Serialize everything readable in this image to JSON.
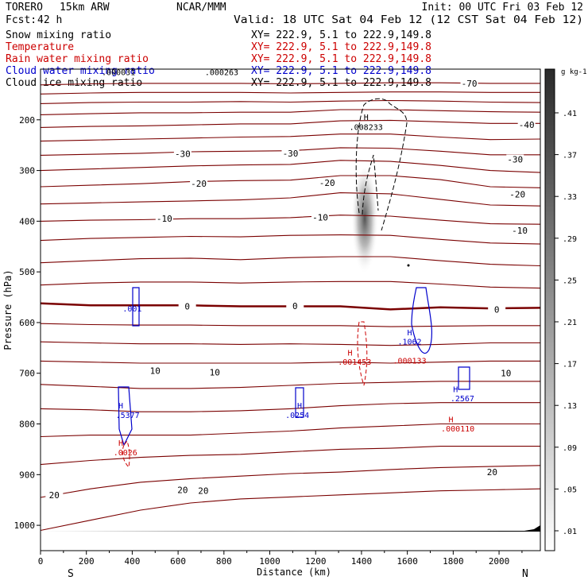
{
  "header": {
    "model": "TORERO",
    "config": "15km ARW",
    "org": "NCAR/MMM",
    "init": "Init: 00 UTC Fri 03 Feb 12",
    "fcst_label": "Fcst:",
    "fcst_value": "42 h",
    "valid": "Valid: 18 UTC Sat 04 Feb 12 (12 CST Sat 04 Feb 12)"
  },
  "fields": [
    {
      "name": "Snow mixing ratio",
      "color": "#000000",
      "xy": "XY= 222.9,  5.1 to 222.9,149.8"
    },
    {
      "name": "Temperature",
      "color": "#cc0000",
      "xy": "XY= 222.9,  5.1 to 222.9,149.8"
    },
    {
      "name": "Rain water mixing ratio",
      "color": "#cc0000",
      "xy": "XY= 222.9,  5.1 to 222.9,149.8"
    },
    {
      "name": "Cloud water mixing ratio",
      "color": "#0000cc",
      "xy": "XY= 222.9,  5.1 to 222.9,149.8"
    },
    {
      "name": "Cloud ice mixing ratio",
      "color": "#000000",
      "xy": "XY= 222.9,  5.1 to 222.9,149.8"
    }
  ],
  "chart_data": {
    "type": "cross-section",
    "xlabel": "Distance (km)",
    "ylabel": "Pressure (hPa)",
    "xlim": [
      0,
      2180
    ],
    "ylim": [
      1050,
      100
    ],
    "x_ticks": [
      0,
      200,
      400,
      600,
      800,
      1000,
      1200,
      1400,
      1600,
      1800,
      2000
    ],
    "y_ticks": [
      200,
      300,
      400,
      500,
      600,
      700,
      800,
      900,
      1000
    ],
    "left_end_label": "S",
    "right_end_label": "N",
    "colorbar": {
      "unit": "g kg-1",
      "ticks": [
        ".01",
        ".05",
        ".09",
        ".13",
        ".17",
        ".21",
        ".25",
        ".29",
        ".33",
        ".37",
        ".41"
      ]
    },
    "temperature_contours": [
      {
        "label": "-70",
        "p": [
          131,
          129,
          128,
          128,
          128,
          129,
          128,
          127,
          127,
          128,
          128
        ]
      },
      {
        "p": [
          149,
          147,
          146,
          146,
          146,
          147,
          146,
          145,
          145,
          146,
          146
        ]
      },
      {
        "p": [
          168,
          166,
          165,
          165,
          164,
          165,
          163,
          162,
          163,
          165,
          166
        ]
      },
      {
        "p": [
          190,
          188,
          186,
          186,
          185,
          185,
          180,
          180,
          182,
          184,
          185
        ]
      },
      {
        "label": "-40",
        "p": [
          215,
          213,
          212,
          210,
          208,
          208,
          202,
          201,
          204,
          207,
          207
        ]
      },
      {
        "p": [
          242,
          240,
          238,
          236,
          234,
          233,
          228,
          228,
          234,
          239,
          238
        ]
      },
      {
        "label": "-30",
        "p": [
          270,
          268,
          266,
          263,
          262,
          261,
          255,
          256,
          262,
          269,
          269
        ]
      },
      {
        "p": [
          300,
          297,
          294,
          291,
          289,
          288,
          280,
          282,
          290,
          300,
          304
        ]
      },
      {
        "label": "-20",
        "p": [
          332,
          329,
          326,
          322,
          320,
          319,
          310,
          310,
          318,
          332,
          334
        ]
      },
      {
        "p": [
          366,
          364,
          362,
          360,
          358,
          354,
          344,
          346,
          357,
          368,
          370
        ]
      },
      {
        "label": "-10",
        "p": [
          400,
          398,
          397,
          395,
          395,
          393,
          388,
          390,
          398,
          405,
          406
        ]
      },
      {
        "p": [
          438,
          434,
          432,
          430,
          431,
          428,
          427,
          428,
          436,
          443,
          445
        ]
      },
      {
        "p": [
          482,
          478,
          474,
          473,
          476,
          472,
          470,
          470,
          478,
          485,
          488
        ]
      },
      {
        "p": [
          526,
          522,
          520,
          520,
          522,
          520,
          519,
          519,
          524,
          530,
          532
        ]
      },
      {
        "label": "0",
        "bold": true,
        "p": [
          562,
          566,
          566,
          566,
          568,
          568,
          568,
          574,
          570,
          572,
          571
        ]
      },
      {
        "p": [
          602,
          604,
          605,
          605,
          606,
          606,
          606,
          608,
          607,
          606,
          606
        ]
      },
      {
        "p": [
          638,
          640,
          642,
          642,
          643,
          642,
          643,
          645,
          643,
          640,
          640
        ]
      },
      {
        "label": "10",
        "p": [
          676,
          678,
          680,
          680,
          680,
          680,
          678,
          680,
          678,
          676,
          676
        ]
      },
      {
        "p": [
          722,
          726,
          730,
          730,
          728,
          724,
          720,
          718,
          716,
          716,
          716
        ]
      },
      {
        "p": [
          770,
          772,
          776,
          776,
          774,
          770,
          764,
          760,
          758,
          758,
          758
        ]
      },
      {
        "p": [
          825,
          822,
          822,
          822,
          818,
          814,
          808,
          804,
          800,
          800,
          800
        ]
      },
      {
        "p": [
          880,
          872,
          866,
          862,
          860,
          855,
          850,
          848,
          844,
          844,
          844
        ]
      },
      {
        "label": "20",
        "p": [
          945,
          928,
          915,
          908,
          903,
          898,
          895,
          890,
          886,
          884,
          882
        ]
      },
      {
        "p": [
          1010,
          990,
          970,
          956,
          948,
          944,
          940,
          936,
          932,
          930,
          928
        ]
      }
    ],
    "temp_labels": [
      {
        "text": "-70",
        "x": 1870,
        "p": 128
      },
      {
        "text": "-40",
        "x": 2120,
        "p": 210
      },
      {
        "text": "-30",
        "x": 620,
        "p": 267
      },
      {
        "text": "-30",
        "x": 1090,
        "p": 266
      },
      {
        "text": "-30",
        "x": 2070,
        "p": 278
      },
      {
        "text": "-20",
        "x": 690,
        "p": 326
      },
      {
        "text": "-20",
        "x": 1250,
        "p": 324
      },
      {
        "text": "-20",
        "x": 2080,
        "p": 347
      },
      {
        "text": "-10",
        "x": 540,
        "p": 395
      },
      {
        "text": "-10",
        "x": 1220,
        "p": 392
      },
      {
        "text": "-10",
        "x": 2090,
        "p": 418
      },
      {
        "text": "0",
        "x": 640,
        "p": 568
      },
      {
        "text": "0",
        "x": 1110,
        "p": 567
      },
      {
        "text": "0",
        "x": 1990,
        "p": 574
      },
      {
        "text": "10",
        "x": 500,
        "p": 695
      },
      {
        "text": "10",
        "x": 760,
        "p": 698
      },
      {
        "text": "10",
        "x": 2030,
        "p": 700
      },
      {
        "text": "20",
        "x": 60,
        "p": 940
      },
      {
        "text": "20",
        "x": 620,
        "p": 930
      },
      {
        "text": "20",
        "x": 710,
        "p": 932
      },
      {
        "text": "20",
        "x": 1970,
        "p": 895
      }
    ],
    "annotations": [
      {
        "text": "H",
        "x": 1420,
        "p": 200,
        "color": "#000000"
      },
      {
        "text": ".008233",
        "x": 1420,
        "p": 220,
        "color": "#000000"
      },
      {
        "text": ".000031",
        "x": 340,
        "p": 112,
        "color": "#000000"
      },
      {
        "text": ".000263",
        "x": 790,
        "p": 112,
        "color": "#000000"
      },
      {
        "text": ".001",
        "x": 400,
        "p": 578,
        "color": "#0000cc"
      },
      {
        "text": "H",
        "x": 1610,
        "p": 625,
        "color": "#0000cc"
      },
      {
        "text": ".1062",
        "x": 1610,
        "p": 643,
        "color": "#0000cc"
      },
      {
        "text": "H",
        "x": 1350,
        "p": 665,
        "color": "#cc0000"
      },
      {
        "text": ".001453",
        "x": 1370,
        "p": 683,
        "color": "#cc0000"
      },
      {
        "text": ".000133",
        "x": 1610,
        "p": 681,
        "color": "#cc0000"
      },
      {
        "text": "H",
        "x": 1810,
        "p": 737,
        "color": "#0000cc"
      },
      {
        "text": ".2567",
        "x": 1840,
        "p": 755,
        "color": "#0000cc"
      },
      {
        "text": "H",
        "x": 350,
        "p": 769,
        "color": "#0000cc"
      },
      {
        "text": ".5377",
        "x": 380,
        "p": 788,
        "color": "#0000cc"
      },
      {
        "text": "H",
        "x": 1130,
        "p": 769,
        "color": "#0000cc"
      },
      {
        "text": ".0254",
        "x": 1120,
        "p": 788,
        "color": "#0000cc"
      },
      {
        "text": "H",
        "x": 1790,
        "p": 797,
        "color": "#cc0000"
      },
      {
        "text": ".000110",
        "x": 1820,
        "p": 815,
        "color": "#cc0000"
      },
      {
        "text": "H",
        "x": 350,
        "p": 843,
        "color": "#cc0000"
      },
      {
        "text": ".0026",
        "x": 370,
        "p": 862,
        "color": "#cc0000"
      }
    ]
  }
}
